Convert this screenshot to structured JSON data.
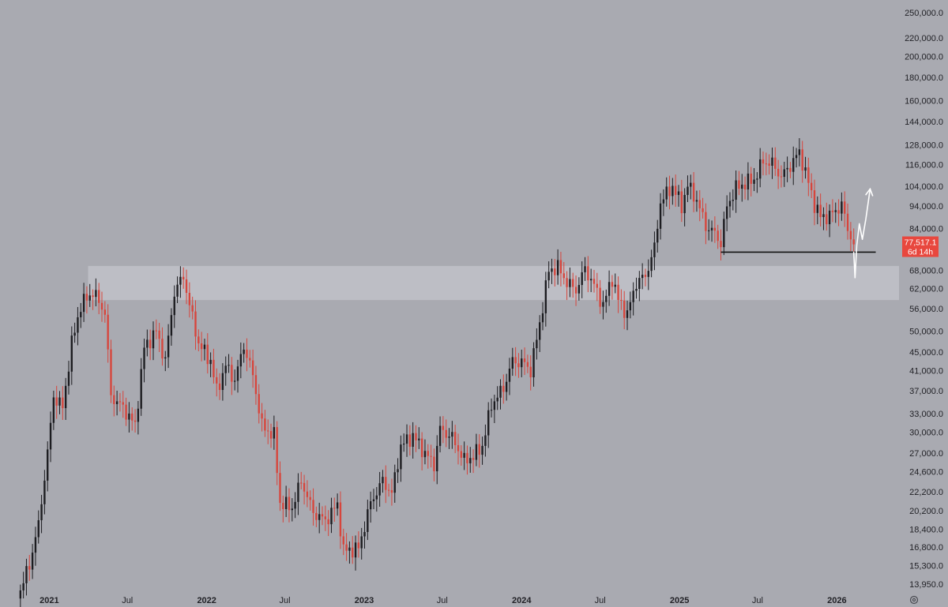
{
  "chart_data": {
    "type": "candlestick",
    "scale": "log",
    "grid": false,
    "colors": {
      "background": "#a9aab1",
      "up": "#1c1c20",
      "down": "#d7453c",
      "zone": "#c3c4cb",
      "price_label": "#e8473e",
      "arrow": "#ffffff",
      "support_line": "#111111"
    },
    "y_axis": {
      "position": "right",
      "range": [
        13500,
        262000
      ],
      "tick_values": [
        13950,
        15300,
        16800,
        18400,
        20200,
        22200,
        24600,
        27000,
        30000,
        33000,
        37000,
        41000,
        45000,
        50000,
        56000,
        62000,
        68000,
        84000,
        94000,
        104000,
        116000,
        128000,
        144000,
        160000,
        180000,
        200000,
        220000,
        250000
      ],
      "tick_labels": [
        "13,950.0",
        "15,300.0",
        "16,800.0",
        "18,400.0",
        "20,200.0",
        "22,200.0",
        "24,600.0",
        "27,000.0",
        "30,000.0",
        "33,000.0",
        "37,000.0",
        "41,000.0",
        "45,000.0",
        "50,000.0",
        "56,000.0",
        "62,000.0",
        "68,000.0",
        "84,000.0",
        "94,000.0",
        "104,000.0",
        "116,000.0",
        "128,000.0",
        "144,000.0",
        "160,000.0",
        "180,000.0",
        "200,000.0",
        "220,000.0",
        "250,000.0"
      ]
    },
    "x_axis": {
      "position": "bottom",
      "range": [
        "2020-10-19",
        "2026-05-25"
      ],
      "ticks": [
        {
          "date": "2021-01-01",
          "label": "2021",
          "year": true
        },
        {
          "date": "2021-07-01",
          "label": "Jul",
          "year": false
        },
        {
          "date": "2022-01-01",
          "label": "2022",
          "year": true
        },
        {
          "date": "2022-07-01",
          "label": "Jul",
          "year": false
        },
        {
          "date": "2023-01-01",
          "label": "2023",
          "year": true
        },
        {
          "date": "2023-07-01",
          "label": "Jul",
          "year": false
        },
        {
          "date": "2024-01-01",
          "label": "2024",
          "year": true
        },
        {
          "date": "2024-07-01",
          "label": "Jul",
          "year": false
        },
        {
          "date": "2025-01-01",
          "label": "2025",
          "year": true
        },
        {
          "date": "2025-07-01",
          "label": "Jul",
          "year": false
        },
        {
          "date": "2026-01-01",
          "label": "2026",
          "year": true
        }
      ]
    },
    "current_price": {
      "value": 77517.1,
      "label": "77,517.1",
      "countdown": "6d 14h"
    },
    "support_zone": {
      "low": 58500,
      "high": 69500,
      "from": "2021-04-01",
      "to": "2026-05-25"
    },
    "support_line": {
      "value": 74500,
      "from": "2025-04-07",
      "to": "2026-04-01"
    },
    "projection_arrow": [
      {
        "date": "2026-02-09",
        "price": 74500
      },
      {
        "date": "2026-02-12",
        "price": 65500
      },
      {
        "date": "2026-02-16",
        "price": 77000
      },
      {
        "date": "2026-02-22",
        "price": 86000
      },
      {
        "date": "2026-03-01",
        "price": 79500
      },
      {
        "date": "2026-03-09",
        "price": 88000
      },
      {
        "date": "2026-03-19",
        "price": 102500
      }
    ],
    "anchors": [
      {
        "date": "2020-10-26",
        "price": 13500
      },
      {
        "date": "2020-11-16",
        "price": 15400
      },
      {
        "date": "2020-12-07",
        "price": 18800
      },
      {
        "date": "2020-12-28",
        "price": 27000
      },
      {
        "date": "2021-01-11",
        "price": 36000
      },
      {
        "date": "2021-02-01",
        "price": 34000
      },
      {
        "date": "2021-02-22",
        "price": 47000
      },
      {
        "date": "2021-03-15",
        "price": 57000
      },
      {
        "date": "2021-04-12",
        "price": 61000
      },
      {
        "date": "2021-05-10",
        "price": 55000
      },
      {
        "date": "2021-05-24",
        "price": 36000
      },
      {
        "date": "2021-06-21",
        "price": 34000
      },
      {
        "date": "2021-07-19",
        "price": 31000
      },
      {
        "date": "2021-08-09",
        "price": 46000
      },
      {
        "date": "2021-09-06",
        "price": 50000
      },
      {
        "date": "2021-09-27",
        "price": 43000
      },
      {
        "date": "2021-10-18",
        "price": 61000
      },
      {
        "date": "2021-11-08",
        "price": 66000
      },
      {
        "date": "2021-11-22",
        "price": 57000
      },
      {
        "date": "2021-12-13",
        "price": 47000
      },
      {
        "date": "2022-01-10",
        "price": 43000
      },
      {
        "date": "2022-01-24",
        "price": 37000
      },
      {
        "date": "2022-02-14",
        "price": 42000
      },
      {
        "date": "2022-03-07",
        "price": 39000
      },
      {
        "date": "2022-03-28",
        "price": 46500
      },
      {
        "date": "2022-04-18",
        "price": 40000
      },
      {
        "date": "2022-05-09",
        "price": 31000
      },
      {
        "date": "2022-06-06",
        "price": 29500
      },
      {
        "date": "2022-06-20",
        "price": 21000
      },
      {
        "date": "2022-07-18",
        "price": 20500
      },
      {
        "date": "2022-08-08",
        "price": 23500
      },
      {
        "date": "2022-09-05",
        "price": 20000
      },
      {
        "date": "2022-10-03",
        "price": 19200
      },
      {
        "date": "2022-10-31",
        "price": 20800
      },
      {
        "date": "2022-11-14",
        "price": 16500
      },
      {
        "date": "2022-12-19",
        "price": 16700
      },
      {
        "date": "2023-01-16",
        "price": 21000
      },
      {
        "date": "2023-02-13",
        "price": 23500
      },
      {
        "date": "2023-03-06",
        "price": 22000
      },
      {
        "date": "2023-03-27",
        "price": 28000
      },
      {
        "date": "2023-04-24",
        "price": 29500
      },
      {
        "date": "2023-05-22",
        "price": 27000
      },
      {
        "date": "2023-06-12",
        "price": 25500
      },
      {
        "date": "2023-06-26",
        "price": 30500
      },
      {
        "date": "2023-07-24",
        "price": 29200
      },
      {
        "date": "2023-08-21",
        "price": 26000
      },
      {
        "date": "2023-09-11",
        "price": 26600
      },
      {
        "date": "2023-10-02",
        "price": 28000
      },
      {
        "date": "2023-10-23",
        "price": 34500
      },
      {
        "date": "2023-11-20",
        "price": 37500
      },
      {
        "date": "2023-12-11",
        "price": 43000
      },
      {
        "date": "2024-01-08",
        "price": 42500
      },
      {
        "date": "2024-01-22",
        "price": 41000
      },
      {
        "date": "2024-02-12",
        "price": 52000
      },
      {
        "date": "2024-03-04",
        "price": 68000
      },
      {
        "date": "2024-03-25",
        "price": 69000
      },
      {
        "date": "2024-04-15",
        "price": 64000
      },
      {
        "date": "2024-05-06",
        "price": 61500
      },
      {
        "date": "2024-05-27",
        "price": 68500
      },
      {
        "date": "2024-06-17",
        "price": 63000
      },
      {
        "date": "2024-07-08",
        "price": 57000
      },
      {
        "date": "2024-07-29",
        "price": 65500
      },
      {
        "date": "2024-08-12",
        "price": 58500
      },
      {
        "date": "2024-09-02",
        "price": 54500
      },
      {
        "date": "2024-09-23",
        "price": 64000
      },
      {
        "date": "2024-10-14",
        "price": 66000
      },
      {
        "date": "2024-11-04",
        "price": 76000
      },
      {
        "date": "2024-11-18",
        "price": 96000
      },
      {
        "date": "2024-12-16",
        "price": 104000
      },
      {
        "date": "2025-01-06",
        "price": 94000
      },
      {
        "date": "2025-01-20",
        "price": 104500
      },
      {
        "date": "2025-02-10",
        "price": 97000
      },
      {
        "date": "2025-03-03",
        "price": 85000
      },
      {
        "date": "2025-03-24",
        "price": 82000
      },
      {
        "date": "2025-04-07",
        "price": 78000
      },
      {
        "date": "2025-04-21",
        "price": 94000
      },
      {
        "date": "2025-05-12",
        "price": 103000
      },
      {
        "date": "2025-06-02",
        "price": 105500
      },
      {
        "date": "2025-06-23",
        "price": 107500
      },
      {
        "date": "2025-07-14",
        "price": 118000
      },
      {
        "date": "2025-08-04",
        "price": 116500
      },
      {
        "date": "2025-08-25",
        "price": 109000
      },
      {
        "date": "2025-09-15",
        "price": 115500
      },
      {
        "date": "2025-10-06",
        "price": 123500
      },
      {
        "date": "2025-10-20",
        "price": 111500
      },
      {
        "date": "2025-11-10",
        "price": 95000
      },
      {
        "date": "2025-11-24",
        "price": 89000
      },
      {
        "date": "2025-12-15",
        "price": 89500
      },
      {
        "date": "2026-01-12",
        "price": 94500
      },
      {
        "date": "2026-01-26",
        "price": 84000
      },
      {
        "date": "2026-02-09",
        "price": 77500
      }
    ]
  }
}
